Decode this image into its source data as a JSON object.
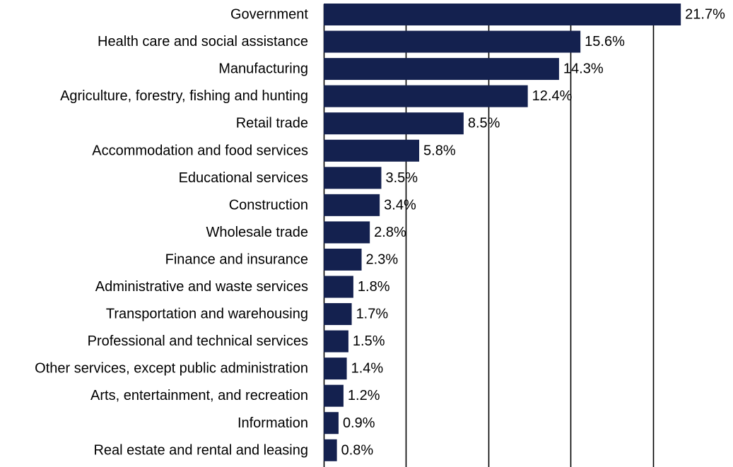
{
  "chart_data": {
    "type": "bar",
    "orientation": "horizontal",
    "categories": [
      "Government",
      "Health care and social assistance",
      "Manufacturing",
      "Agriculture, forestry, fishing and hunting",
      "Retail trade",
      "Accommodation and food services",
      "Educational services",
      "Construction",
      "Wholesale trade",
      "Finance and insurance",
      "Administrative and waste services",
      "Transportation and warehousing",
      "Professional and technical services",
      "Other services, except public administration",
      "Arts, entertainment, and recreation",
      "Information",
      "Real estate and rental and leasing"
    ],
    "values": [
      21.7,
      15.6,
      14.3,
      12.4,
      8.5,
      5.8,
      3.5,
      3.4,
      2.8,
      2.3,
      1.8,
      1.7,
      1.5,
      1.4,
      1.2,
      0.9,
      0.8
    ],
    "value_labels": [
      "21.7%",
      "15.6%",
      "14.3%",
      "12.4%",
      "8.5%",
      "5.8%",
      "3.5%",
      "3.4%",
      "2.8%",
      "2.3%",
      "1.8%",
      "1.7%",
      "1.5%",
      "1.4%",
      "1.2%",
      "0.9%",
      "0.8%"
    ],
    "xlim": [
      0,
      25
    ],
    "vertical_gridlines": [
      0,
      5,
      10,
      15,
      20,
      25
    ],
    "bar_color": "#14214f",
    "grid_color": "#000000",
    "title": "",
    "xlabel": "",
    "ylabel": "",
    "grid": true,
    "legend": "none"
  }
}
